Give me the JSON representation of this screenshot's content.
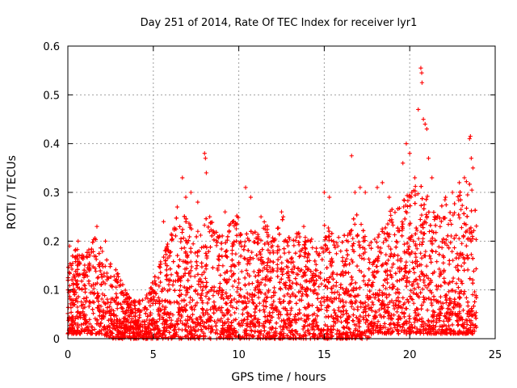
{
  "chart_data": {
    "type": "scatter",
    "title": "Day 251 of 2014, Rate Of TEC Index for receiver lyr1",
    "xlabel": "GPS time / hours",
    "ylabel": "ROTI / TECUs",
    "xlim": [
      0,
      25
    ],
    "ylim": [
      0,
      0.6
    ],
    "x_ticks": [
      0,
      5,
      10,
      15,
      20,
      25
    ],
    "x_tick_labels": [
      "0",
      "5",
      "10",
      "15",
      "20",
      "25"
    ],
    "y_ticks": [
      0,
      0.1,
      0.2,
      0.3,
      0.4,
      0.5,
      0.6
    ],
    "y_tick_labels": [
      "0",
      "0.1",
      "0.2",
      "0.3",
      "0.4",
      "0.5",
      "0.6"
    ],
    "grid": true,
    "marker": "+",
    "color": "#ff0000",
    "series": [
      {
        "name": "ROTI",
        "envelope_hours": [
          0,
          0.5,
          1,
          1.5,
          2,
          2.5,
          3,
          3.5,
          4,
          4.5,
          5,
          5.5,
          6,
          6.5,
          7,
          7.5,
          8,
          8.5,
          9,
          9.5,
          10,
          10.5,
          11,
          11.5,
          12,
          12.5,
          13,
          13.5,
          14,
          14.5,
          15,
          15.5,
          16,
          16.5,
          17,
          17.5,
          18,
          18.5,
          19,
          19.5,
          20,
          20.5,
          21,
          21.5,
          22,
          22.5,
          23,
          23.5,
          23.9
        ],
        "envelope_upper": [
          0.15,
          0.19,
          0.17,
          0.22,
          0.19,
          0.16,
          0.13,
          0.09,
          0.08,
          0.09,
          0.12,
          0.17,
          0.21,
          0.27,
          0.25,
          0.22,
          0.26,
          0.24,
          0.22,
          0.24,
          0.26,
          0.23,
          0.22,
          0.24,
          0.22,
          0.25,
          0.21,
          0.23,
          0.21,
          0.2,
          0.24,
          0.22,
          0.21,
          0.24,
          0.26,
          0.21,
          0.22,
          0.25,
          0.27,
          0.28,
          0.3,
          0.32,
          0.31,
          0.26,
          0.29,
          0.27,
          0.31,
          0.33,
          0.28
        ],
        "envelope_lower": [
          0.01,
          0.01,
          0.01,
          0.01,
          0.01,
          0.0,
          0.0,
          0.0,
          0.0,
          0.0,
          0.0,
          0.0,
          0.0,
          0.0,
          0.0,
          0.0,
          0.0,
          0.0,
          0.0,
          0.0,
          0.0,
          0.0,
          0.0,
          0.0,
          0.0,
          0.0,
          0.0,
          0.0,
          0.0,
          0.0,
          0.0,
          0.0,
          0.0,
          0.0,
          0.0,
          0.0,
          0.01,
          0.01,
          0.01,
          0.01,
          0.01,
          0.01,
          0.01,
          0.01,
          0.01,
          0.01,
          0.01,
          0.01,
          0.01
        ],
        "outliers": [
          {
            "x": 0.1,
            "y": 0.19
          },
          {
            "x": 0.6,
            "y": 0.2
          },
          {
            "x": 1.7,
            "y": 0.23
          },
          {
            "x": 2.2,
            "y": 0.2
          },
          {
            "x": 5.6,
            "y": 0.24
          },
          {
            "x": 6.4,
            "y": 0.27
          },
          {
            "x": 6.7,
            "y": 0.33
          },
          {
            "x": 6.9,
            "y": 0.29
          },
          {
            "x": 7.2,
            "y": 0.3
          },
          {
            "x": 7.6,
            "y": 0.28
          },
          {
            "x": 8.0,
            "y": 0.38
          },
          {
            "x": 8.05,
            "y": 0.37
          },
          {
            "x": 8.1,
            "y": 0.34
          },
          {
            "x": 8.3,
            "y": 0.25
          },
          {
            "x": 9.2,
            "y": 0.26
          },
          {
            "x": 10.4,
            "y": 0.31
          },
          {
            "x": 10.7,
            "y": 0.29
          },
          {
            "x": 11.3,
            "y": 0.25
          },
          {
            "x": 12.5,
            "y": 0.26
          },
          {
            "x": 12.6,
            "y": 0.25
          },
          {
            "x": 13.8,
            "y": 0.23
          },
          {
            "x": 15.0,
            "y": 0.3
          },
          {
            "x": 15.3,
            "y": 0.29
          },
          {
            "x": 16.6,
            "y": 0.375
          },
          {
            "x": 16.8,
            "y": 0.3
          },
          {
            "x": 17.1,
            "y": 0.31
          },
          {
            "x": 17.4,
            "y": 0.3
          },
          {
            "x": 18.1,
            "y": 0.31
          },
          {
            "x": 18.4,
            "y": 0.32
          },
          {
            "x": 18.8,
            "y": 0.29
          },
          {
            "x": 19.6,
            "y": 0.36
          },
          {
            "x": 19.8,
            "y": 0.4
          },
          {
            "x": 20.0,
            "y": 0.38
          },
          {
            "x": 20.3,
            "y": 0.33
          },
          {
            "x": 20.5,
            "y": 0.47
          },
          {
            "x": 20.65,
            "y": 0.555
          },
          {
            "x": 20.7,
            "y": 0.545
          },
          {
            "x": 20.72,
            "y": 0.525
          },
          {
            "x": 20.8,
            "y": 0.45
          },
          {
            "x": 20.9,
            "y": 0.44
          },
          {
            "x": 21.0,
            "y": 0.43
          },
          {
            "x": 21.1,
            "y": 0.37
          },
          {
            "x": 21.3,
            "y": 0.33
          },
          {
            "x": 22.1,
            "y": 0.29
          },
          {
            "x": 22.5,
            "y": 0.3
          },
          {
            "x": 22.9,
            "y": 0.32
          },
          {
            "x": 23.2,
            "y": 0.33
          },
          {
            "x": 23.5,
            "y": 0.41
          },
          {
            "x": 23.55,
            "y": 0.415
          },
          {
            "x": 23.6,
            "y": 0.37
          },
          {
            "x": 23.7,
            "y": 0.35
          }
        ]
      }
    ]
  }
}
